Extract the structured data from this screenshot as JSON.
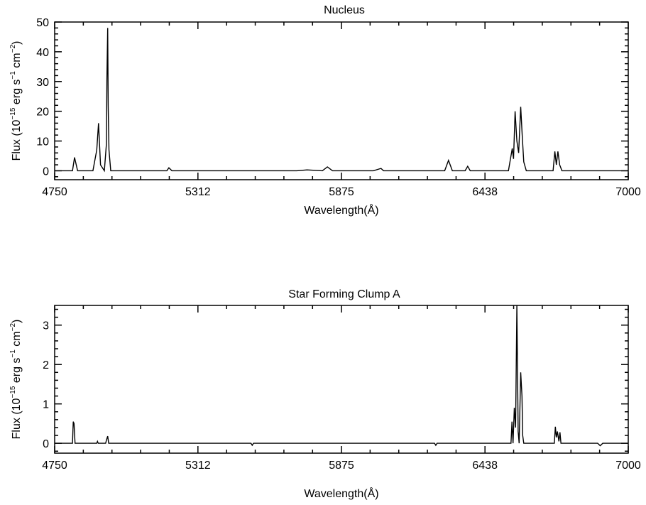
{
  "chart_data": [
    {
      "type": "line",
      "title": "Nucleus",
      "xlabel": "Wavelength(Å)",
      "ylabel": {
        "prefix": "Flux (10",
        "exp1": "−15",
        "mid1": " erg s",
        "exp2": "−1",
        "mid2": " cm",
        "exp3": "−2",
        "suffix": ")"
      },
      "xlim": [
        4750,
        7000
      ],
      "ylim": [
        -3,
        50
      ],
      "xticks": [
        4750,
        5312,
        5875,
        6438,
        7000
      ],
      "yticks": [
        0,
        10,
        20,
        30,
        40,
        50
      ],
      "series": [
        {
          "x": [
            4750,
            4820,
            4828,
            4840,
            4900,
            4915,
            4922,
            4930,
            4945,
            4953,
            4955,
            4958,
            4960,
            4963,
            4970,
            4990,
            5150,
            5190,
            5198,
            5210,
            5700,
            5740,
            5800,
            5820,
            5840,
            6000,
            6030,
            6040,
            6050,
            6280,
            6295,
            6310,
            6330,
            6360,
            6370,
            6380,
            6530,
            6545,
            6550,
            6556,
            6563,
            6570,
            6578,
            6584,
            6590,
            6600,
            6680,
            6705,
            6712,
            6718,
            6724,
            6731,
            6740,
            7000
          ],
          "y": [
            0,
            0,
            4.5,
            0,
            0,
            7,
            16,
            2,
            0,
            9,
            31,
            48,
            22,
            7,
            0,
            0,
            0,
            0,
            1.0,
            0,
            0,
            0.3,
            0,
            1.3,
            0,
            0,
            0.8,
            0,
            0,
            0,
            3.5,
            0,
            0,
            0,
            1.5,
            0,
            0,
            7.5,
            4,
            20,
            10,
            6,
            21.5,
            12,
            3,
            0,
            0,
            0,
            6.5,
            2,
            6.5,
            2,
            0,
            0
          ]
        }
      ]
    },
    {
      "type": "line",
      "title": "Star Forming Clump A",
      "xlabel": "Wavelength(Å)",
      "ylabel": {
        "prefix": "Flux (10",
        "exp1": "−15",
        "mid1": " erg s",
        "exp2": "−1",
        "mid2": " cm",
        "exp3": "−2",
        "suffix": ")"
      },
      "xlim": [
        4750,
        7000
      ],
      "ylim": [
        -0.25,
        3.5
      ],
      "xticks": [
        4750,
        5312,
        5875,
        6438,
        7000
      ],
      "yticks": [
        0,
        1,
        2,
        3
      ],
      "series": [
        {
          "x": [
            4750,
            4820,
            4823,
            4826,
            4830,
            4915,
            4918,
            4921,
            4950,
            4955,
            4958,
            4962,
            5520,
            5525,
            5530,
            6240,
            6245,
            6250,
            6540,
            6544,
            6548,
            6553,
            6558,
            6563,
            6568,
            6572,
            6578,
            6583,
            6586,
            6590,
            6710,
            6714,
            6718,
            6722,
            6728,
            6732,
            6736,
            6880,
            6890,
            6900,
            7000
          ],
          "y": [
            0,
            0,
            0.55,
            0.5,
            0,
            0,
            0.05,
            0,
            0,
            0.12,
            0.18,
            0,
            0,
            -0.05,
            0,
            0,
            -0.05,
            0,
            0,
            0.55,
            0,
            0.9,
            0.4,
            3.5,
            0.3,
            0,
            1.8,
            1.2,
            0.2,
            0,
            0,
            0.42,
            0.15,
            0.3,
            0.05,
            0.28,
            0,
            0,
            -0.06,
            0,
            0
          ]
        }
      ]
    }
  ]
}
